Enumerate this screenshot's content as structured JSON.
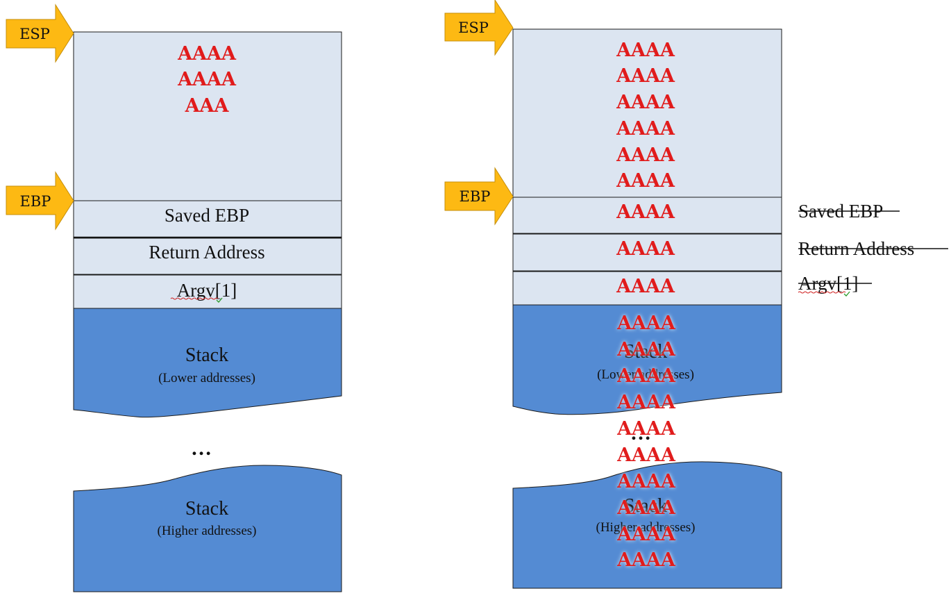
{
  "colors": {
    "frame_fill": "#dce5f1",
    "stack_fill": "#548bd3",
    "arrow_fill": "#fdb913",
    "overflow_text": "#e11b1b",
    "border": "#1a1a1a"
  },
  "left": {
    "esp_label": "ESP",
    "ebp_label": "EBP",
    "buffer_lines": [
      "AAAA",
      "AAAA",
      "AAA"
    ],
    "saved_ebp": "Saved EBP",
    "return_address": "Return Address",
    "argv": "Argv[1]",
    "stack_low_title": "Stack",
    "stack_low_sub": "(Lower addresses)",
    "ellipsis": "…",
    "stack_high_title": "Stack",
    "stack_high_sub": "(Higher addresses)"
  },
  "right": {
    "esp_label": "ESP",
    "ebp_label": "EBP",
    "buffer_lines": [
      "AAAA",
      "AAAA",
      "AAAA",
      "AAAA",
      "AAAA",
      "AAAA"
    ],
    "saved_ebp_value": "AAAA",
    "return_address_value": "AAAA",
    "argv_value": "AAAA",
    "overflow_lines": [
      "AAAA",
      "AAAA",
      "AAAA",
      "AAAA",
      "AAAA",
      "AAAA",
      "AAAA",
      "AAAA",
      "AAAA",
      "AAAA"
    ],
    "struck_saved_ebp": "Saved EBP",
    "struck_return_address": "Return Address",
    "struck_argv": "Argv[1]",
    "stack_low_title": "Stack",
    "stack_low_sub": "(Lower addresses)",
    "ellipsis": "…",
    "stack_high_title": "Stack",
    "stack_high_sub": "(Higher addresses)"
  }
}
